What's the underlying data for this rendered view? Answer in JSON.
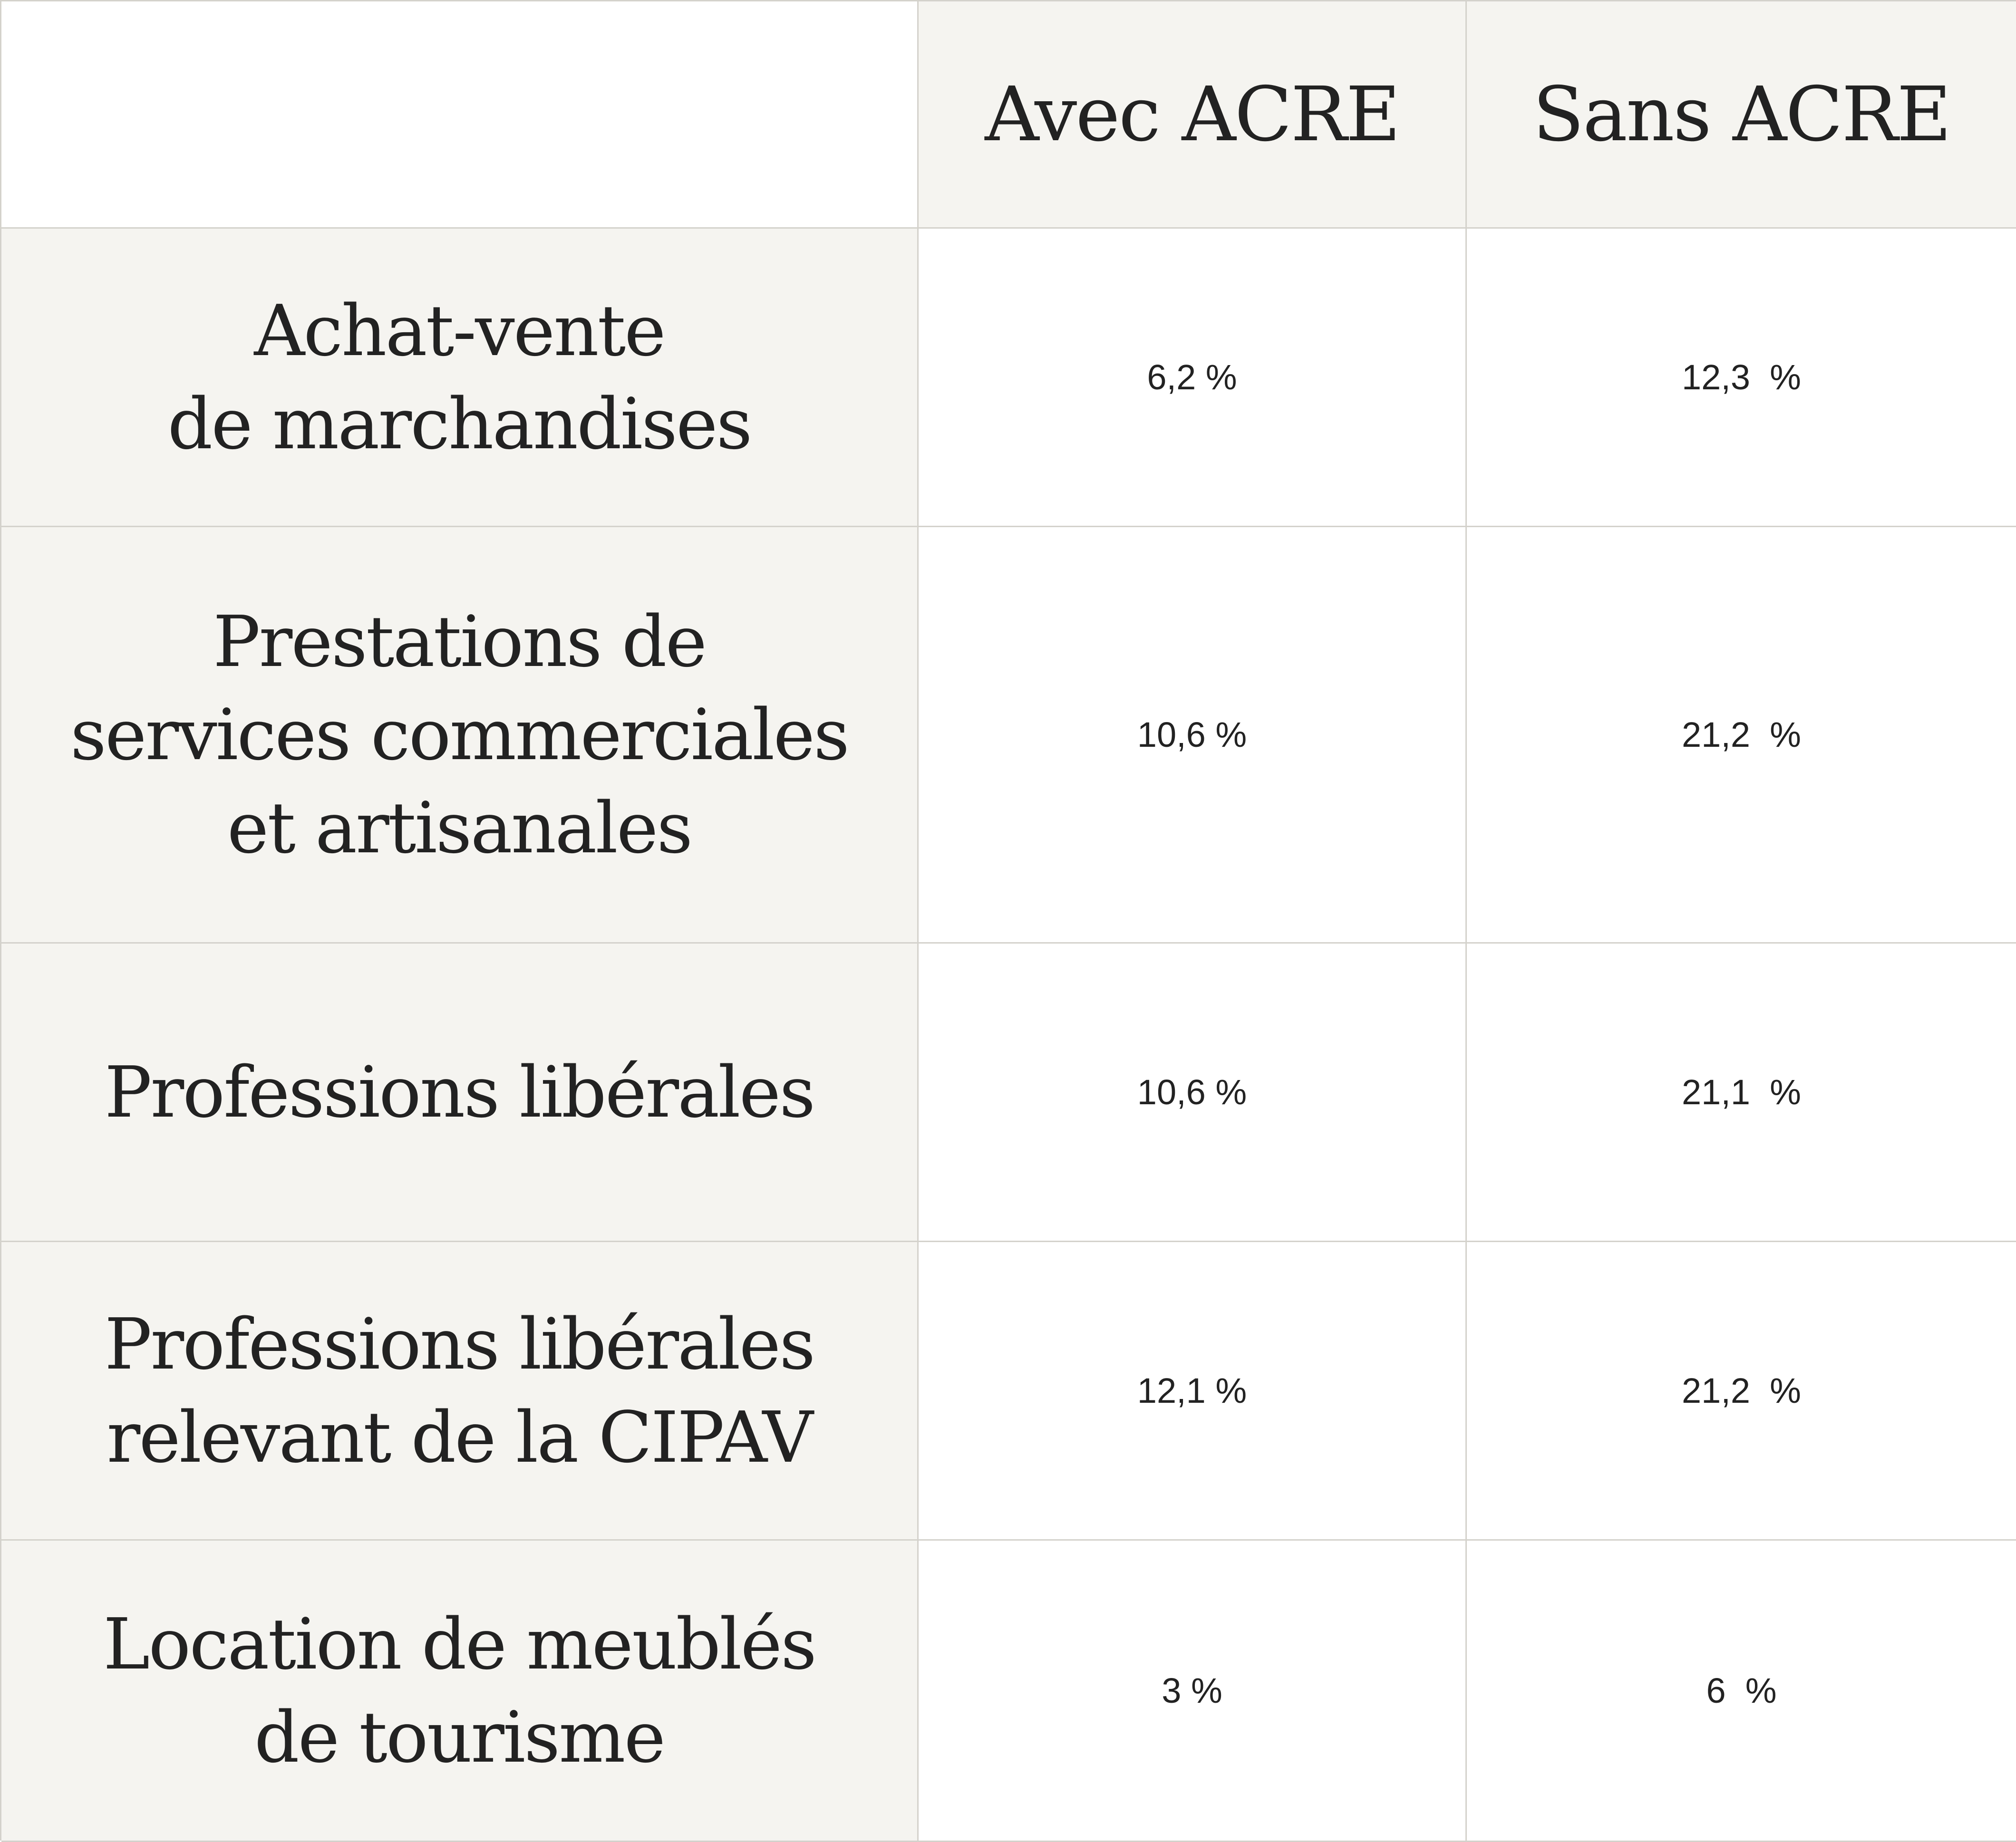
{
  "header": {
    "corner": "",
    "col1": "Avec ACRE",
    "col2": "Sans ACRE"
  },
  "rows": [
    {
      "label_lines": [
        "Achat-vente",
        "de marchandises"
      ],
      "avec": "6,2 %",
      "sans": "12,3  %"
    },
    {
      "label_lines": [
        "Prestations de",
        "services commerciales",
        "et artisanales"
      ],
      "avec": "10,6 %",
      "sans": "21,2  %"
    },
    {
      "label_lines": [
        "Professions libérales"
      ],
      "avec": "10,6 %",
      "sans": "21,1  %"
    },
    {
      "label_lines": [
        "Professions libérales",
        "relevant de la CIPAV"
      ],
      "avec": "12,1 %",
      "sans": "21,2  %"
    },
    {
      "label_lines": [
        "Location de meublés",
        "de tourisme"
      ],
      "avec": "3 %",
      "sans": "6  %"
    }
  ],
  "colors": {
    "label_background": "#f5f4f0",
    "value_background": "#ffffff",
    "border": "#d4d2cc",
    "text": "#222222"
  }
}
